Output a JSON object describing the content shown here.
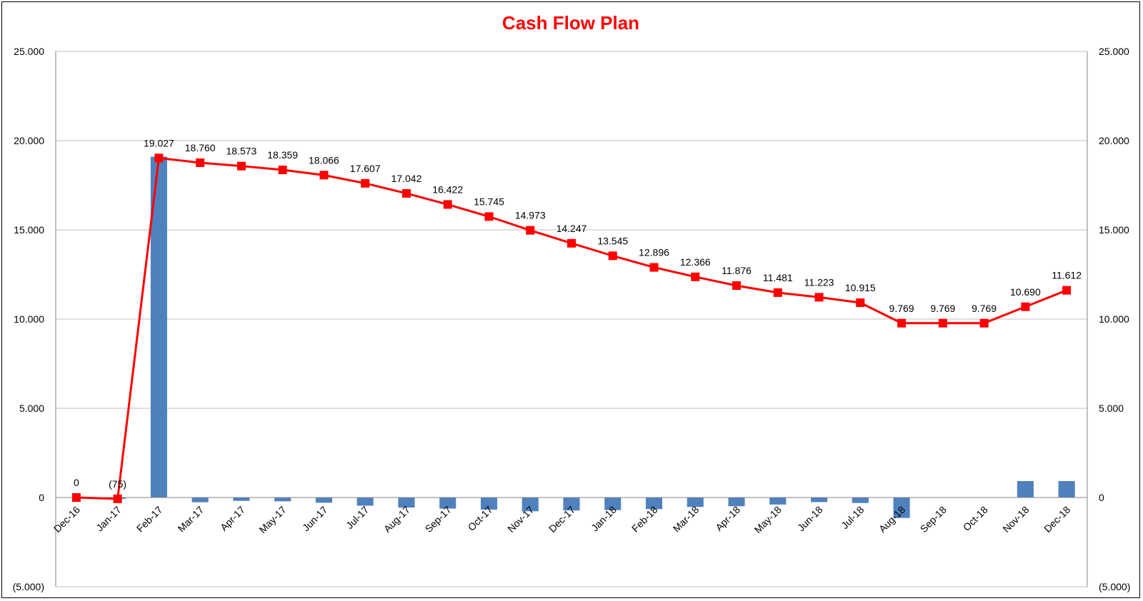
{
  "chart_data": {
    "type": "bar+line",
    "title": "Cash Flow Plan",
    "categories": [
      "Dec-16",
      "Jan-17",
      "Feb-17",
      "Mar-17",
      "Apr-17",
      "May-17",
      "Jun-17",
      "Jul-17",
      "Aug-17",
      "Sep-17",
      "Oct-17",
      "Nov-17",
      "Dec-17",
      "Jan-18",
      "Feb-18",
      "Mar-18",
      "Apr-18",
      "May-18",
      "Jun-18",
      "Jul-18",
      "Aug-18",
      "Sep-18",
      "Oct-18",
      "Nov-18",
      "Dec-18"
    ],
    "y_ticks_left": [
      "25.000",
      "20.000",
      "15.000",
      "10.000",
      "5.000",
      "0",
      "(5.000)"
    ],
    "y_ticks_right": [
      "25.000",
      "20.000",
      "15.000",
      "10.000",
      "5.000",
      "0",
      "(5.000)"
    ],
    "ylim": [
      -5000,
      25000
    ],
    "y2lim": [
      -5000,
      25000
    ],
    "grid": true,
    "series": [
      {
        "kind": "bar",
        "values": [
          0,
          -75,
          19102,
          -267,
          -187,
          -214,
          -293,
          -459,
          -565,
          -620,
          -677,
          -772,
          -726,
          -702,
          -649,
          -530,
          -490,
          -395,
          -258,
          -308,
          -1146,
          0,
          0,
          921,
          922
        ]
      },
      {
        "kind": "line",
        "values": [
          0,
          -75,
          19027,
          18760,
          18573,
          18359,
          18066,
          17607,
          17042,
          16422,
          15745,
          14973,
          14247,
          13545,
          12896,
          12366,
          11876,
          11481,
          11223,
          10915,
          9769,
          9769,
          9769,
          10690,
          11612
        ],
        "labels": [
          "0",
          "(75)",
          "19.027",
          "18.760",
          "18.573",
          "18.359",
          "18.066",
          "17.607",
          "17.042",
          "16.422",
          "15.745",
          "14.973",
          "14.247",
          "13.545",
          "12.896",
          "12.366",
          "11.876",
          "11.481",
          "11.223",
          "10.915",
          "9.769",
          "9.769",
          "9.769",
          "10.690",
          "11.612"
        ]
      }
    ],
    "colors": {
      "bar": "#4f81bd",
      "line": "#ff0000",
      "grid": "#bfbfbf",
      "title": "#ff0000"
    }
  }
}
